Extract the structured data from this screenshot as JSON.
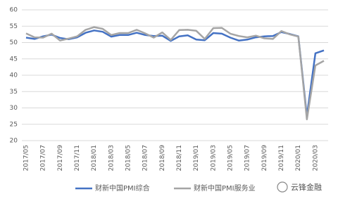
{
  "chart_data": {
    "type": "line",
    "categories": [
      "2017/05",
      null,
      "2017/07",
      null,
      "2017/09",
      null,
      "2017/11",
      null,
      "2018/01",
      null,
      "2018/03",
      null,
      "2018/05",
      null,
      "2018/07",
      null,
      "2018/09",
      null,
      "2018/11",
      null,
      "2019/01",
      null,
      "2019/03",
      null,
      "2019/05",
      null,
      "2019/07",
      null,
      "2019/09",
      null,
      "2019/11",
      null,
      "2020/01",
      null,
      "2020/03",
      null
    ],
    "series": [
      {
        "name": "财新中国PMI综合",
        "color": "#4472c4",
        "values": [
          51.5,
          51.1,
          51.9,
          52.4,
          51.4,
          51.0,
          51.6,
          53.0,
          53.7,
          53.3,
          51.8,
          52.3,
          52.3,
          53.0,
          52.3,
          52.0,
          52.1,
          50.5,
          51.9,
          52.2,
          50.9,
          50.7,
          52.9,
          52.7,
          51.5,
          50.6,
          50.9,
          51.6,
          51.9,
          52.0,
          53.2,
          52.6,
          51.9,
          27.5,
          46.7,
          47.6
        ]
      },
      {
        "name": "财新中国PMI服务业",
        "color": "#a5a5a5",
        "values": [
          52.8,
          51.6,
          51.5,
          52.7,
          50.6,
          51.2,
          51.9,
          53.9,
          54.7,
          54.2,
          52.3,
          52.9,
          52.9,
          53.9,
          52.8,
          51.5,
          53.1,
          50.8,
          53.8,
          53.9,
          53.6,
          51.1,
          54.4,
          54.5,
          52.7,
          52.0,
          51.6,
          52.1,
          51.3,
          51.1,
          53.5,
          52.5,
          51.8,
          26.5,
          43.0,
          44.4
        ]
      }
    ],
    "ylim": [
      20,
      60
    ],
    "yticks": [
      20,
      25,
      30,
      35,
      40,
      45,
      50,
      55,
      60
    ],
    "grid": true,
    "legend": "bottom",
    "watermark": "云锋金融"
  }
}
